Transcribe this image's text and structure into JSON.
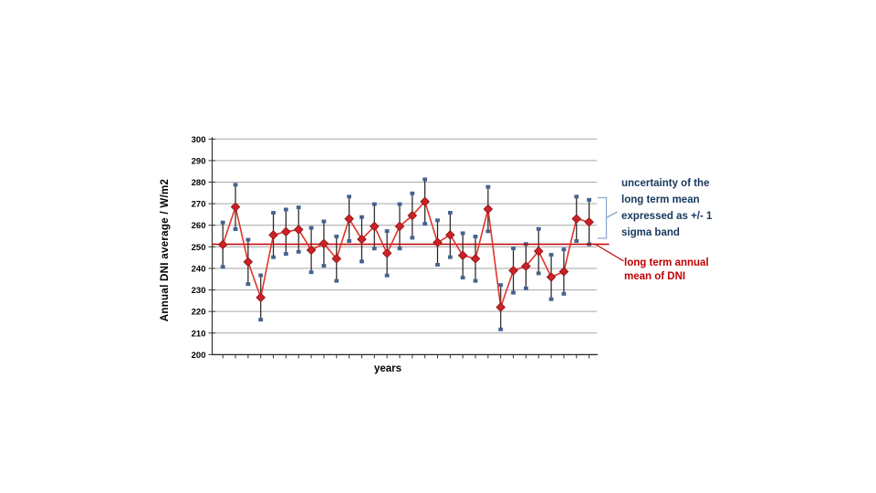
{
  "chart_data": {
    "type": "line",
    "title": "",
    "xlabel": "years",
    "ylabel": "Annual DNI average / W/m2",
    "ylim": [
      200,
      300
    ],
    "ytick_step": 10,
    "grid": "horizontal",
    "legend": "none",
    "x_tick_labels_visible": false,
    "series": [
      {
        "name": "Annual DNI average",
        "marker": "diamond",
        "error": 10.3,
        "values": [
          251,
          268.5,
          243,
          226.5,
          255.5,
          257,
          258,
          248.5,
          251.5,
          244.5,
          263,
          253.5,
          259.5,
          247,
          259.5,
          264.5,
          271,
          252,
          255.5,
          246,
          244.5,
          267.5,
          222,
          239,
          241,
          248,
          236,
          238.5,
          263,
          261.5
        ]
      }
    ],
    "mean_line": {
      "value": 251.2
    }
  },
  "annotations": {
    "sigma_note": {
      "lines": [
        "uncertainty of the",
        "long term mean",
        "expressed as +/- 1",
        "sigma band"
      ],
      "color": "#17375e"
    },
    "mean_note": {
      "lines": [
        "long term annual",
        "mean of DNI"
      ],
      "color": "#c00000"
    }
  },
  "colors": {
    "series_red": "#cf2127",
    "series_stroke_red": "#8f1a1a",
    "series_line_red": "#e0342b",
    "mean_line_red": "#c00000",
    "error_bar_black": "#1f1f1f",
    "error_cap_blue": "#46638f",
    "gridline_gray": "#a6a6a6",
    "axis_gray": "#333333",
    "annotation_blue": "#17375e",
    "annotation_red": "#c00000",
    "brace_blue": "#8ea9cc",
    "background": "#ffffff"
  }
}
